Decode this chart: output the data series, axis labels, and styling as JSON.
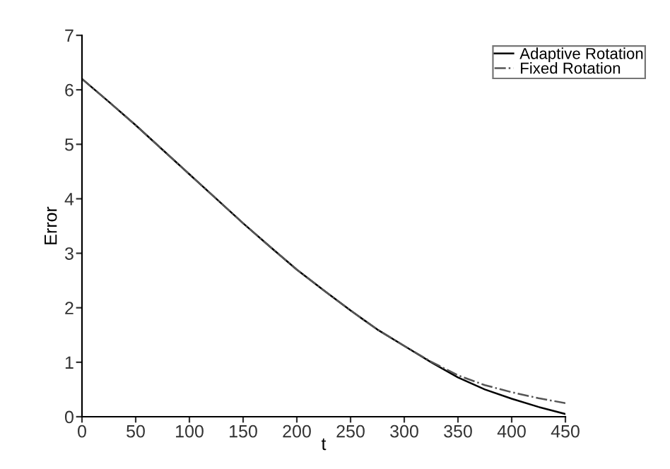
{
  "chart_data": {
    "type": "line",
    "xlabel": "t",
    "ylabel": "Error",
    "xlim": [
      0,
      450
    ],
    "ylim": [
      0,
      7
    ],
    "xticks": [
      0,
      50,
      100,
      150,
      200,
      250,
      300,
      350,
      400,
      450
    ],
    "yticks": [
      0,
      1,
      2,
      3,
      4,
      5,
      6,
      7
    ],
    "grid": false,
    "legend": "top right",
    "series": [
      {
        "name": "Adaptive Rotation",
        "color": "#000000",
        "line_style": "solid",
        "x": [
          0,
          25,
          50,
          75,
          100,
          125,
          150,
          175,
          200,
          225,
          250,
          275,
          300,
          325,
          350,
          375,
          400,
          425,
          450
        ],
        "values": [
          6.2,
          5.78,
          5.35,
          4.9,
          4.45,
          4.0,
          3.55,
          3.12,
          2.7,
          2.32,
          1.95,
          1.6,
          1.3,
          1.0,
          0.72,
          0.5,
          0.33,
          0.18,
          0.05
        ]
      },
      {
        "name": "Fixed Rotation",
        "color": "#555555",
        "line_style": "dashdot",
        "x": [
          0,
          25,
          50,
          75,
          100,
          125,
          150,
          175,
          200,
          225,
          250,
          275,
          300,
          325,
          350,
          375,
          400,
          425,
          450
        ],
        "values": [
          6.2,
          5.78,
          5.35,
          4.9,
          4.45,
          4.0,
          3.55,
          3.12,
          2.7,
          2.32,
          1.95,
          1.6,
          1.3,
          1.01,
          0.76,
          0.58,
          0.45,
          0.34,
          0.25
        ]
      }
    ]
  }
}
